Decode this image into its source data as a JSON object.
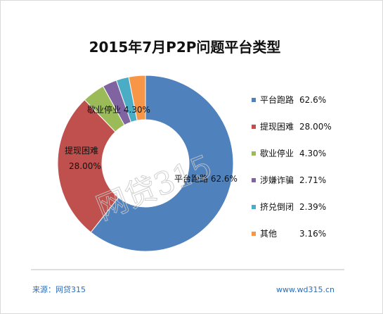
{
  "chart_data": {
    "type": "pie",
    "title": "2015年7月P2P问题平台类型",
    "donut": true,
    "legend_position": "right",
    "series": [
      {
        "name": "平台跑路",
        "legend_value": "62.6%",
        "label_value": "62.6%",
        "value": 62.6,
        "color": "#4f81bd"
      },
      {
        "name": "提现困难",
        "legend_value": "28.00%",
        "label_value": "28.00%",
        "value": 28.0,
        "color": "#c0504d"
      },
      {
        "name": "歇业停业",
        "legend_value": "4.30%",
        "label_value": "4.30%",
        "value": 4.3,
        "color": "#9bbb59"
      },
      {
        "name": "涉嫌诈骗",
        "legend_value": "2.71%",
        "label_value": "",
        "value": 2.71,
        "color": "#8064a2"
      },
      {
        "name": "挤兑倒闭",
        "legend_value": "2.39%",
        "label_value": "",
        "value": 2.39,
        "color": "#4bacc6"
      },
      {
        "name": "其他",
        "legend_value": "3.16%",
        "label_value": "",
        "value": 3.16,
        "color": "#f79646"
      }
    ]
  },
  "footer": {
    "source": "来源：网贷315",
    "url": "www.wd315.cn"
  },
  "watermark": "网贷315"
}
